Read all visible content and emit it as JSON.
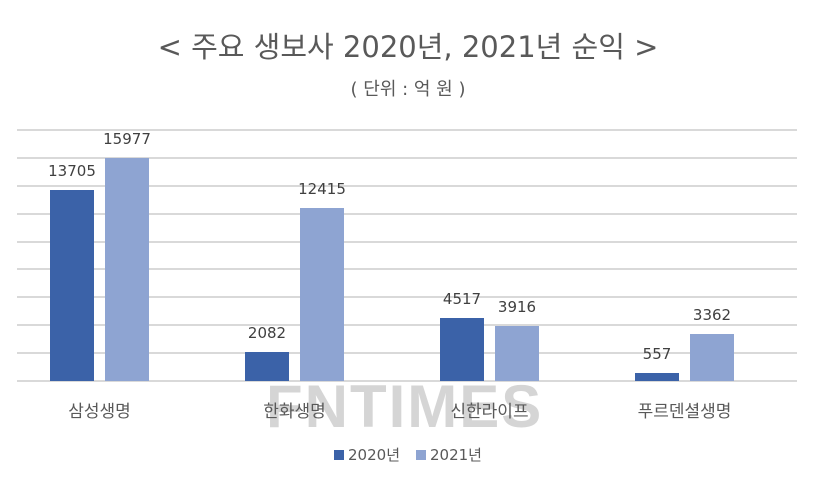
{
  "header": {
    "title": "< 주요 생보사 2020년, 2021년 순익 >",
    "subtitle": "( 단위 : 억 원 )"
  },
  "watermark": "FNTIMES",
  "colors": {
    "series_2020": "#3b62a8",
    "series_2021": "#8ea4d2",
    "grid": "#d9d9d9"
  },
  "legend": [
    {
      "label": "2020년",
      "color": "#3b62a8"
    },
    {
      "label": "2021년",
      "color": "#8ea4d2"
    }
  ],
  "chart_data": {
    "type": "bar",
    "title": "< 주요 생보사 2020년, 2021년 순익 >",
    "subtitle": "( 단위 : 억 원 )",
    "categories": [
      "삼성생명",
      "한화생명",
      "신한라이프",
      "푸르덴셜생명"
    ],
    "series": [
      {
        "name": "2020년",
        "values": [
          13705,
          2082,
          4517,
          557
        ]
      },
      {
        "name": "2021년",
        "values": [
          15977,
          12415,
          3916,
          3362
        ]
      }
    ],
    "xlabel": "",
    "ylabel": "",
    "ylim": [
      0,
      18000
    ],
    "grid": true,
    "grid_step": 2000,
    "y_tick_labels_visible": false,
    "data_labels": true,
    "legend_position": "bottom"
  }
}
